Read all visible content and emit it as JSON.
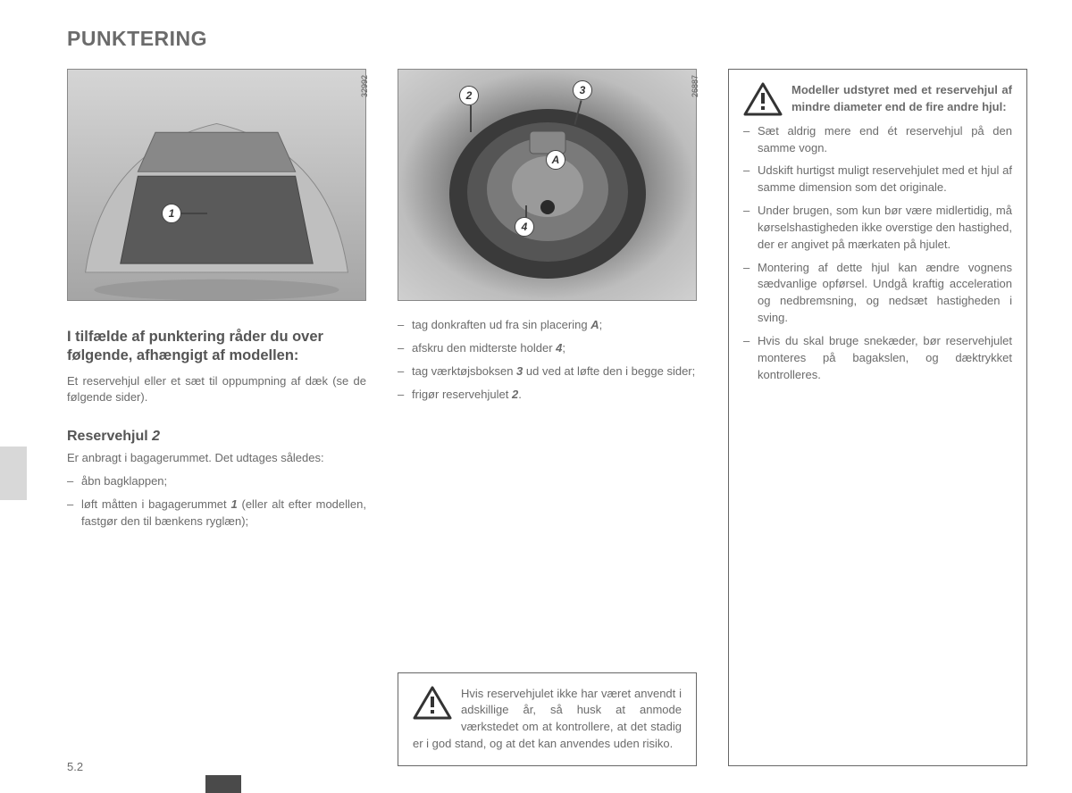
{
  "page_title": "PUNKTERING",
  "page_number": "5.2",
  "fig1": {
    "id": "32992",
    "callouts": {
      "c1": "1"
    }
  },
  "fig2": {
    "id": "26887",
    "callouts": {
      "c2": "2",
      "c3": "3",
      "cA": "A",
      "c4": "4"
    }
  },
  "col1": {
    "heading": "I tilfælde af punktering råder du over følgende, afhængigt af modellen:",
    "intro": "Et reservehjul eller et sæt til oppumpning af dæk (se de følgende sider).",
    "sub1_a": "Reservehjul ",
    "sub1_b": "2",
    "sub1_text": "Er anbragt i bagagerummet. Det udtages således:",
    "list": [
      "åbn bagklappen;",
      "løft måtten i bagagerummet <span class=\"bold-ital\">1</span> (eller alt efter modellen, fastgør den til bænkens ryglæn);"
    ]
  },
  "col2": {
    "list": [
      "tag donkraften ud fra sin placering <span class=\"bold-ital\">A</span>;",
      "afskru den midterste holder <span class=\"bold-ital\">4</span>;",
      "tag værktøjsboksen <span class=\"bold-ital\">3</span> ud ved at løfte den i begge sider;",
      "frigør reservehjulet <span class=\"bold-ital\">2</span>."
    ],
    "warning": "Hvis reservehjulet ikke har været anvendt i adskillige år, så husk at anmode værkstedet om at kontrollere, at det stadig er i god stand, og at det kan anvendes uden risiko."
  },
  "col3": {
    "warning_header": "Modeller udstyret med et reservehjul af mindre diameter end de fire andre hjul:",
    "list": [
      "Sæt aldrig mere end ét reservehjul på den samme vogn.",
      "Udskift hurtigst muligt reservehjulet med et hjul af samme dimension som det originale.",
      "Under brugen, som kun bør være midlertidig, må kørselshastigheden ikke overstige den hastighed, der er angivet på mærkaten på hjulet.",
      "Montering af dette hjul kan ændre vognens sædvanlige opførsel. Undgå kraftig acceleration og nedbremsning, og nedsæt hastigheden i sving.",
      "Hvis du skal bruge snekæder, bør reservehjulet monteres på bagakslen, og dæktrykket kontrolleres."
    ]
  }
}
